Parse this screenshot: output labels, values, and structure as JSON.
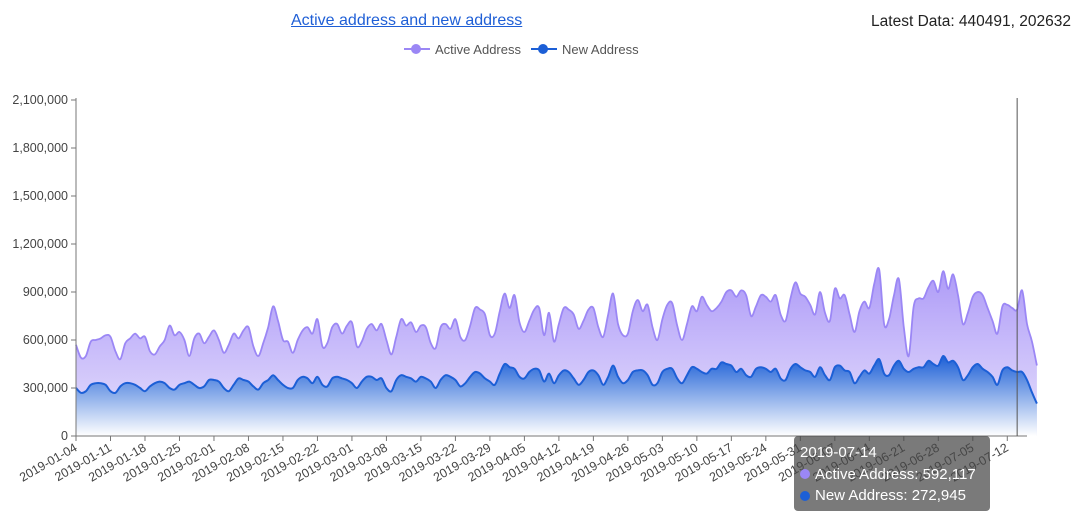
{
  "header": {
    "title": "Active address and new address",
    "latest_label": "Latest Data: 440491, 202632"
  },
  "colors": {
    "active": "#9b87f5",
    "new": "#1c5fd6",
    "axis": "#777777"
  },
  "legend": {
    "items": [
      {
        "label": "Active Address",
        "color": "#9b87f5"
      },
      {
        "label": "New Address",
        "color": "#1c5fd6"
      }
    ]
  },
  "tooltip": {
    "date": "2019-07-14",
    "rows": [
      {
        "label": "Active Address: 592,117",
        "color": "#9b87f5"
      },
      {
        "label": "New Address: 272,945",
        "color": "#1c5fd6"
      }
    ]
  },
  "chart_data": {
    "type": "area",
    "title": "Active address and new address",
    "x_start": "2019-01-04",
    "x_end": "2019-07-16",
    "x_ticks": [
      "2019-01-04",
      "2019-01-11",
      "2019-01-18",
      "2019-01-25",
      "2019-02-01",
      "2019-02-08",
      "2019-02-15",
      "2019-02-22",
      "2019-03-01",
      "2019-03-08",
      "2019-03-15",
      "2019-03-22",
      "2019-03-29",
      "2019-04-05",
      "2019-04-12",
      "2019-04-19",
      "2019-04-26",
      "2019-05-03",
      "2019-05-10",
      "2019-05-17",
      "2019-05-24",
      "2019-05-31",
      "2019-06-07",
      "2019-06-14",
      "2019-06-21",
      "2019-06-28",
      "2019-07-05",
      "2019-07-12"
    ],
    "y_ticks": [
      "0",
      "300,000",
      "600,000",
      "900,000",
      "1,200,000",
      "1,500,000",
      "1,800,000",
      "2,100,000"
    ],
    "ylim": [
      0,
      2100000
    ],
    "grid": false,
    "legend_position": "top",
    "highlight_date": "2019-07-14",
    "series": [
      {
        "name": "Active Address",
        "color": "#9b87f5",
        "values": [
          570000,
          490000,
          500000,
          590000,
          600000,
          610000,
          630000,
          620000,
          530000,
          480000,
          580000,
          610000,
          640000,
          610000,
          620000,
          530000,
          510000,
          560000,
          600000,
          690000,
          630000,
          650000,
          600000,
          500000,
          610000,
          640000,
          580000,
          620000,
          660000,
          600000,
          520000,
          570000,
          640000,
          610000,
          660000,
          680000,
          560000,
          500000,
          580000,
          680000,
          810000,
          720000,
          600000,
          590000,
          520000,
          600000,
          660000,
          680000,
          640000,
          730000,
          560000,
          580000,
          680000,
          700000,
          640000,
          690000,
          710000,
          560000,
          590000,
          670000,
          700000,
          660000,
          700000,
          600000,
          510000,
          620000,
          730000,
          690000,
          710000,
          650000,
          690000,
          680000,
          580000,
          550000,
          680000,
          700000,
          670000,
          730000,
          620000,
          600000,
          690000,
          800000,
          790000,
          760000,
          630000,
          640000,
          780000,
          890000,
          800000,
          880000,
          710000,
          650000,
          720000,
          790000,
          800000,
          630000,
          770000,
          590000,
          700000,
          800000,
          790000,
          760000,
          670000,
          720000,
          790000,
          800000,
          680000,
          620000,
          760000,
          890000,
          700000,
          630000,
          640000,
          780000,
          850000,
          780000,
          820000,
          680000,
          600000,
          730000,
          820000,
          830000,
          690000,
          600000,
          700000,
          810000,
          780000,
          870000,
          820000,
          780000,
          800000,
          840000,
          900000,
          910000,
          870000,
          910000,
          880000,
          750000,
          810000,
          880000,
          870000,
          840000,
          880000,
          760000,
          720000,
          860000,
          960000,
          890000,
          870000,
          820000,
          760000,
          900000,
          770000,
          720000,
          920000,
          860000,
          880000,
          760000,
          650000,
          780000,
          840000,
          800000,
          950000,
          1040000,
          700000,
          730000,
          880000,
          980000,
          680000,
          500000,
          810000,
          860000,
          860000,
          930000,
          970000,
          900000,
          1030000,
          920000,
          1010000,
          880000,
          700000,
          770000,
          870000,
          900000,
          880000,
          800000,
          720000,
          640000,
          810000,
          820000,
          800000,
          790000,
          910000,
          700000,
          592117,
          440491
        ]
      },
      {
        "name": "New Address",
        "color": "#1c5fd6",
        "values": [
          300000,
          270000,
          280000,
          320000,
          330000,
          330000,
          320000,
          280000,
          270000,
          310000,
          330000,
          330000,
          320000,
          300000,
          280000,
          310000,
          330000,
          340000,
          330000,
          300000,
          290000,
          320000,
          330000,
          340000,
          320000,
          300000,
          310000,
          350000,
          350000,
          340000,
          300000,
          280000,
          320000,
          360000,
          350000,
          340000,
          310000,
          290000,
          330000,
          350000,
          380000,
          350000,
          320000,
          300000,
          300000,
          350000,
          370000,
          360000,
          330000,
          370000,
          320000,
          310000,
          360000,
          370000,
          360000,
          350000,
          330000,
          300000,
          340000,
          370000,
          370000,
          350000,
          360000,
          300000,
          280000,
          350000,
          380000,
          370000,
          360000,
          340000,
          370000,
          360000,
          340000,
          300000,
          350000,
          380000,
          370000,
          350000,
          310000,
          330000,
          370000,
          400000,
          390000,
          360000,
          340000,
          320000,
          390000,
          450000,
          430000,
          420000,
          370000,
          360000,
          400000,
          420000,
          410000,
          340000,
          390000,
          330000,
          380000,
          410000,
          400000,
          360000,
          320000,
          350000,
          400000,
          410000,
          380000,
          320000,
          370000,
          440000,
          370000,
          330000,
          350000,
          400000,
          410000,
          410000,
          380000,
          320000,
          330000,
          400000,
          420000,
          420000,
          360000,
          330000,
          380000,
          430000,
          420000,
          400000,
          390000,
          420000,
          420000,
          460000,
          450000,
          440000,
          400000,
          420000,
          380000,
          370000,
          420000,
          430000,
          420000,
          400000,
          420000,
          360000,
          350000,
          420000,
          450000,
          430000,
          410000,
          400000,
          370000,
          430000,
          380000,
          350000,
          430000,
          440000,
          410000,
          400000,
          330000,
          370000,
          410000,
          390000,
          440000,
          480000,
          390000,
          380000,
          440000,
          470000,
          420000,
          400000,
          420000,
          430000,
          430000,
          470000,
          450000,
          440000,
          500000,
          460000,
          470000,
          430000,
          350000,
          380000,
          430000,
          450000,
          420000,
          400000,
          370000,
          320000,
          410000,
          430000,
          410000,
          400000,
          400000,
          350000,
          272945,
          202632
        ]
      }
    ]
  }
}
